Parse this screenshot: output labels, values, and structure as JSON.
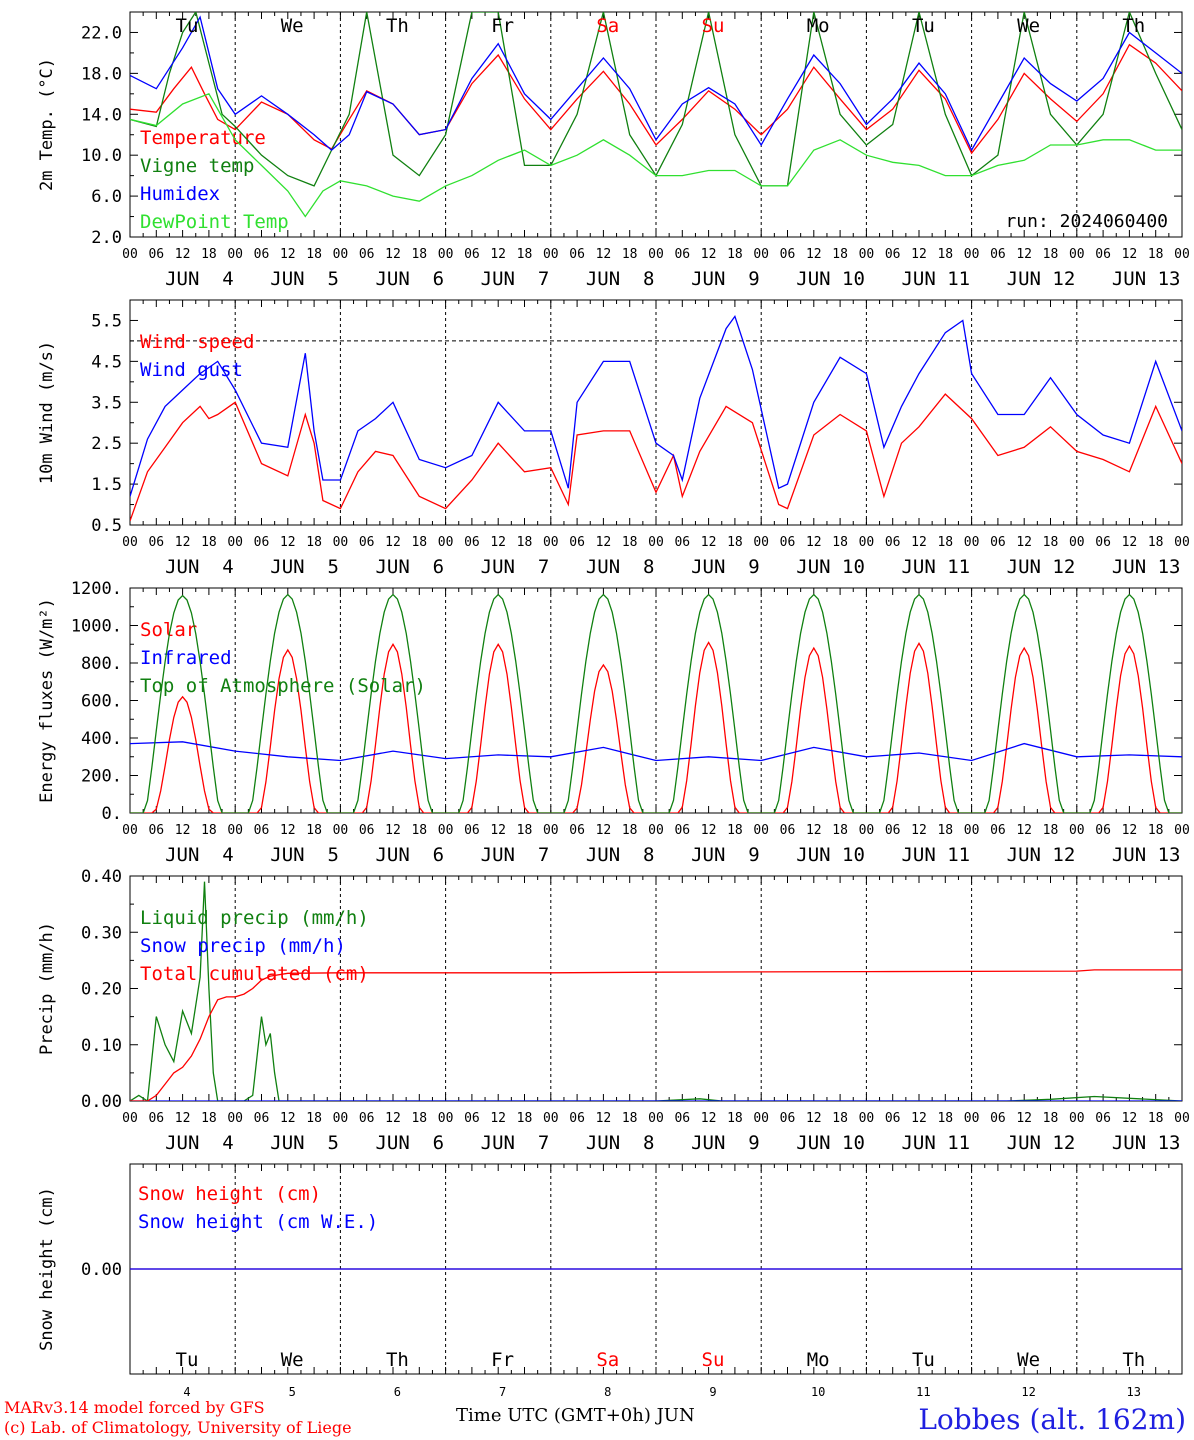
{
  "chart_data": [
    {
      "type": "line",
      "ylabel": "2m Temp. (°C)",
      "ylim": [
        2,
        24
      ],
      "yticks": [
        "2.0",
        "6.0",
        "10.0",
        "14.0",
        "18.0",
        "22.0"
      ],
      "ytick_values": [
        2,
        6,
        10,
        14,
        18,
        22
      ],
      "run_label": "run: 2024060400",
      "x_unit": "hours since JUN 4 00 UTC",
      "series": [
        {
          "name": "Temperature",
          "color": "#ff0000",
          "x": [
            0,
            6,
            10,
            14,
            17,
            20,
            24,
            30,
            36,
            42,
            46,
            50,
            54,
            60,
            66,
            72,
            78,
            84,
            90,
            96,
            102,
            108,
            114,
            120,
            126,
            132,
            138,
            144,
            150,
            156,
            162,
            168,
            174,
            180,
            186,
            192,
            198,
            204,
            210,
            216,
            222,
            228,
            234,
            240
          ],
          "y": [
            14.5,
            14.2,
            16.5,
            18.6,
            16,
            13.5,
            12.5,
            15.2,
            14,
            11.5,
            10.6,
            13.5,
            16.3,
            15,
            12,
            12.5,
            17,
            19.8,
            15.5,
            12.5,
            15.5,
            18.2,
            15,
            11,
            13.5,
            16.3,
            14.5,
            12,
            14.5,
            18.6,
            15.5,
            12.5,
            14.5,
            18.3,
            15.5,
            10.2,
            13.5,
            18,
            15.5,
            13.3,
            16,
            20.8,
            19,
            16.3
          ]
        },
        {
          "name": "Vigne temp",
          "color": "#108010",
          "x": [
            0,
            6,
            9,
            12,
            15,
            18,
            21,
            24,
            30,
            36,
            42,
            46,
            50,
            54,
            60,
            66,
            72,
            78,
            84,
            90,
            96,
            102,
            108,
            114,
            120,
            126,
            132,
            138,
            144,
            150,
            156,
            162,
            168,
            174,
            180,
            186,
            192,
            198,
            204,
            210,
            216,
            222,
            228,
            234,
            240
          ],
          "y": [
            13.5,
            12.8,
            18,
            22,
            24,
            19,
            14,
            12.8,
            10,
            8,
            7,
            10.5,
            14,
            24,
            10,
            8,
            12,
            24,
            24,
            9,
            9,
            14,
            24,
            12,
            8,
            13,
            24,
            12,
            7,
            7,
            24,
            14,
            11,
            13,
            24,
            14,
            8,
            10,
            24,
            14,
            11,
            14,
            24,
            18,
            12.5
          ]
        },
        {
          "name": "Humidex",
          "color": "#0000ff",
          "x": [
            0,
            6,
            12,
            16,
            20,
            24,
            30,
            36,
            42,
            46,
            50,
            54,
            60,
            66,
            72,
            78,
            84,
            90,
            96,
            102,
            108,
            114,
            120,
            126,
            132,
            138,
            144,
            150,
            156,
            162,
            168,
            174,
            180,
            186,
            192,
            198,
            204,
            210,
            216,
            222,
            228,
            234,
            240
          ],
          "y": [
            17.8,
            16.5,
            20.5,
            23.5,
            16.5,
            14,
            15.8,
            14,
            12,
            10.5,
            12,
            16.2,
            15,
            12,
            12.5,
            17.5,
            20.9,
            16,
            13.5,
            16.5,
            19.5,
            16.5,
            11.5,
            15,
            16.6,
            15,
            11,
            15.5,
            19.8,
            17,
            13,
            15.5,
            19,
            16,
            10.5,
            15,
            19.5,
            17,
            15.3,
            17.5,
            22,
            20,
            18
          ]
        },
        {
          "name": "DewPoint Temp",
          "color": "#30e030",
          "x": [
            0,
            6,
            12,
            18,
            24,
            30,
            36,
            40,
            44,
            48,
            54,
            60,
            66,
            72,
            78,
            84,
            90,
            96,
            102,
            108,
            114,
            120,
            126,
            132,
            138,
            144,
            150,
            156,
            162,
            168,
            174,
            180,
            186,
            192,
            198,
            204,
            210,
            216,
            222,
            228,
            234,
            240
          ],
          "y": [
            13.5,
            12.9,
            15,
            16,
            11.5,
            9,
            6.5,
            4,
            6.5,
            7.5,
            7,
            6,
            5.5,
            7,
            8,
            9.5,
            10.5,
            9,
            10,
            11.5,
            10,
            8,
            8,
            8.5,
            8.5,
            7,
            7,
            10.5,
            11.5,
            10,
            9.3,
            9,
            8,
            8,
            9,
            9.5,
            11,
            11,
            11.5,
            11.5,
            10.5,
            10.5
          ]
        }
      ]
    },
    {
      "type": "line",
      "ylabel": "10m Wind (m/s)",
      "ylim": [
        0.5,
        6
      ],
      "yticks": [
        "0.5",
        "1.5",
        "2.5",
        "3.5",
        "4.5",
        "5.5"
      ],
      "ytick_values": [
        0.5,
        1.5,
        2.5,
        3.5,
        4.5,
        5.5
      ],
      "reference_line": 5,
      "x_unit": "hours since JUN 4 00 UTC",
      "series": [
        {
          "name": "Wind speed",
          "color": "#ff0000",
          "x": [
            0,
            4,
            8,
            12,
            16,
            18,
            20,
            24,
            30,
            36,
            40,
            42,
            44,
            48,
            52,
            56,
            60,
            66,
            72,
            78,
            84,
            90,
            96,
            100,
            102,
            108,
            114,
            120,
            124,
            126,
            130,
            136,
            142,
            148,
            150,
            156,
            162,
            168,
            172,
            176,
            180,
            186,
            192,
            198,
            204,
            210,
            216,
            222,
            228,
            234,
            240
          ],
          "y": [
            0.6,
            1.8,
            2.4,
            3,
            3.4,
            3.1,
            3.2,
            3.5,
            2,
            1.7,
            3.2,
            2.5,
            1.1,
            0.9,
            1.8,
            2.3,
            2.2,
            1.2,
            0.9,
            1.6,
            2.5,
            1.8,
            1.9,
            1.0,
            2.7,
            2.8,
            2.8,
            1.3,
            2.2,
            1.2,
            2.3,
            3.4,
            3.0,
            1.0,
            0.9,
            2.7,
            3.2,
            2.8,
            1.2,
            2.5,
            2.9,
            3.7,
            3.1,
            2.2,
            2.4,
            2.9,
            2.3,
            2.1,
            1.8,
            3.4,
            2.0
          ]
        },
        {
          "name": "Wind gust",
          "color": "#0000ff",
          "x": [
            0,
            4,
            8,
            12,
            16,
            20,
            24,
            30,
            36,
            40,
            42,
            44,
            48,
            52,
            56,
            60,
            66,
            72,
            78,
            84,
            90,
            96,
            100,
            102,
            108,
            114,
            120,
            124,
            126,
            130,
            136,
            138,
            142,
            148,
            150,
            156,
            162,
            168,
            172,
            176,
            180,
            186,
            190,
            192,
            198,
            204,
            210,
            216,
            222,
            228,
            234,
            240
          ],
          "y": [
            1.2,
            2.6,
            3.4,
            3.8,
            4.2,
            4.5,
            3.8,
            2.5,
            2.4,
            4.7,
            2.8,
            1.6,
            1.6,
            2.8,
            3.1,
            3.5,
            2.1,
            1.9,
            2.2,
            3.5,
            2.8,
            2.8,
            1.4,
            3.5,
            4.5,
            4.5,
            2.5,
            2.2,
            1.6,
            3.6,
            5.3,
            5.6,
            4.3,
            1.4,
            1.5,
            3.5,
            4.6,
            4.2,
            2.4,
            3.4,
            4.2,
            5.2,
            5.5,
            4.2,
            3.2,
            3.2,
            4.1,
            3.2,
            2.7,
            2.5,
            4.5,
            2.8
          ]
        }
      ]
    },
    {
      "type": "line",
      "ylabel": "Energy fluxes (W/m²)",
      "ylim": [
        0,
        1200
      ],
      "yticks": [
        "0.",
        "200.",
        "400.",
        "600.",
        "800.",
        "1000.",
        "1200."
      ],
      "ytick_values": [
        0,
        200,
        400,
        600,
        800,
        1000,
        1200
      ],
      "x_unit": "hours since JUN 4 00 UTC",
      "series": [
        {
          "name": "Solar",
          "color": "#ff0000",
          "daily_peak": [
            620,
            870,
            900,
            900,
            790,
            910,
            880,
            905,
            880,
            890
          ]
        },
        {
          "name": "Infrared",
          "color": "#0000ff",
          "x": [
            0,
            12,
            24,
            36,
            48,
            60,
            72,
            84,
            96,
            108,
            120,
            132,
            144,
            156,
            168,
            180,
            192,
            204,
            216,
            228,
            240
          ],
          "y": [
            370,
            380,
            330,
            300,
            280,
            330,
            290,
            310,
            300,
            350,
            280,
            300,
            280,
            350,
            300,
            320,
            280,
            370,
            300,
            310,
            300
          ]
        },
        {
          "name": "Top of Atmosphere (Solar)",
          "color": "#108010",
          "daily_peak": [
            1160,
            1165,
            1165,
            1165,
            1165,
            1165,
            1165,
            1165,
            1165,
            1165
          ]
        }
      ]
    },
    {
      "type": "line",
      "ylabel": "Precip (mm/h)",
      "ylim": [
        0,
        0.4
      ],
      "yticks": [
        "0.00",
        "0.10",
        "0.20",
        "0.30",
        "0.40"
      ],
      "ytick_values": [
        0,
        0.1,
        0.2,
        0.3,
        0.4
      ],
      "x_unit": "hours since JUN 4 00 UTC",
      "series": [
        {
          "name": "Liquid precip (mm/h)",
          "color": "#108010",
          "x": [
            0,
            2,
            4,
            6,
            8,
            10,
            12,
            14,
            16,
            17,
            18,
            19,
            20,
            22,
            24,
            26,
            28,
            30,
            31,
            32,
            33,
            34,
            36,
            40,
            120,
            130,
            135,
            200,
            210,
            220,
            240
          ],
          "y": [
            0,
            0.01,
            0,
            0.15,
            0.1,
            0.07,
            0.16,
            0.12,
            0.22,
            0.39,
            0.2,
            0.05,
            0,
            0,
            0,
            0,
            0.01,
            0.15,
            0.1,
            0.12,
            0.05,
            0,
            0,
            0,
            0,
            0.004,
            0,
            0,
            0.003,
            0.008,
            0
          ]
        },
        {
          "name": "Snow precip (mm/h)",
          "color": "#0000ff",
          "x": [
            0,
            240
          ],
          "y": [
            0,
            0
          ]
        },
        {
          "name": "Total cumulated (cm)",
          "color": "#ff0000",
          "x": [
            0,
            4,
            6,
            8,
            10,
            12,
            14,
            16,
            18,
            20,
            22,
            24,
            26,
            28,
            30,
            32,
            36,
            48,
            60,
            96,
            120,
            168,
            216,
            220,
            240
          ],
          "y": [
            0,
            0,
            0.01,
            0.03,
            0.05,
            0.06,
            0.08,
            0.11,
            0.15,
            0.18,
            0.185,
            0.185,
            0.19,
            0.2,
            0.215,
            0.222,
            0.227,
            0.228,
            0.228,
            0.228,
            0.229,
            0.23,
            0.231,
            0.233,
            0.233
          ]
        }
      ]
    },
    {
      "type": "line",
      "ylabel": "Snow height (cm)",
      "ylim": [
        -1,
        1
      ],
      "yticks": [
        "0.00"
      ],
      "ytick_values": [
        0
      ],
      "x_unit": "hours since JUN 4 00 UTC",
      "series": [
        {
          "name": "Snow height (cm)",
          "color": "#ff0000",
          "x": [
            0,
            240
          ],
          "y": [
            0,
            0
          ]
        },
        {
          "name": "Snow height (cm W.E.)",
          "color": "#0000ff",
          "x": [
            0,
            240
          ],
          "y": [
            0,
            0
          ]
        }
      ]
    }
  ],
  "days": [
    {
      "dow": "Tu",
      "date": "JUN  4",
      "num": "4",
      "weekend": false
    },
    {
      "dow": "We",
      "date": "JUN  5",
      "num": "5",
      "weekend": false
    },
    {
      "dow": "Th",
      "date": "JUN  6",
      "num": "6",
      "weekend": false
    },
    {
      "dow": "Fr",
      "date": "JUN  7",
      "num": "7",
      "weekend": false
    },
    {
      "dow": "Sa",
      "date": "JUN  8",
      "num": "8",
      "weekend": true
    },
    {
      "dow": "Su",
      "date": "JUN  9",
      "num": "9",
      "weekend": true
    },
    {
      "dow": "Mo",
      "date": "JUN 10",
      "num": "10",
      "weekend": false
    },
    {
      "dow": "Tu",
      "date": "JUN 11",
      "num": "11",
      "weekend": false
    },
    {
      "dow": "We",
      "date": "JUN 12",
      "num": "12",
      "weekend": false
    },
    {
      "dow": "Th",
      "date": "JUN 13",
      "num": "13",
      "weekend": false
    }
  ],
  "hour_ticks": [
    "00",
    "06",
    "12",
    "18"
  ],
  "last_hour_tick": "00",
  "colors": {
    "weekday": "#000000",
    "weekend": "#ff0000"
  },
  "footer": {
    "credit_line1": "MARv3.14 model forced by GFS",
    "credit_line2": "(c) Lab. of Climatology, University of Liege",
    "xlabel": "Time UTC (GMT+0h) JUN",
    "station": "Lobbes (alt. 162m)"
  }
}
